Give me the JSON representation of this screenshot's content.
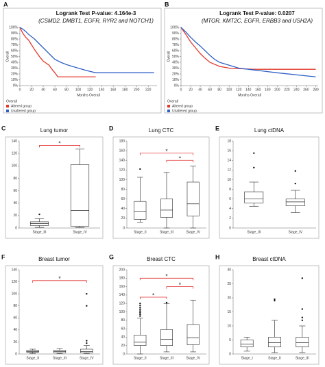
{
  "chart_data": [
    {
      "type": "line",
      "label": "A",
      "title": "Logrank Test P-value: 4.164e-3",
      "subtitle": "(CSMD2, DMBT1, EGFR, RYR2 and NOTCH1)",
      "xlabel": "Months Overall",
      "ylabel": "Overall",
      "legend_title": "Overall",
      "xlim": [
        0,
        235
      ],
      "xticks": [
        0,
        20,
        40,
        60,
        80,
        100,
        120,
        140,
        160,
        180,
        200,
        220
      ],
      "ylim": [
        0,
        100
      ],
      "yticks": [
        {
          "value": 0,
          "label": "0%"
        },
        {
          "value": 10,
          "label": "10%"
        },
        {
          "value": 20,
          "label": "20%"
        },
        {
          "value": 30,
          "label": "30%"
        },
        {
          "value": 40,
          "label": "40%"
        },
        {
          "value": 50,
          "label": "50%"
        },
        {
          "value": 60,
          "label": "60%"
        },
        {
          "value": 70,
          "label": "70%"
        },
        {
          "value": 80,
          "label": "80%"
        },
        {
          "value": 90,
          "label": "90%"
        },
        {
          "value": 100,
          "label": "100%"
        }
      ],
      "series": [
        {
          "name": "Altered group",
          "color": "#e2382a",
          "x": [
            0,
            5,
            10,
            15,
            20,
            25,
            30,
            35,
            40,
            50,
            55,
            60,
            65,
            130
          ],
          "values": [
            100,
            90,
            83,
            78,
            70,
            62,
            55,
            48,
            42,
            35,
            28,
            22,
            15,
            15
          ]
        },
        {
          "name": "Unaltered group",
          "color": "#2f5fc8",
          "x": [
            0,
            5,
            10,
            15,
            20,
            25,
            30,
            35,
            40,
            45,
            50,
            55,
            60,
            70,
            80,
            90,
            100,
            110,
            130,
            230
          ],
          "values": [
            100,
            97,
            93,
            88,
            84,
            80,
            75,
            70,
            65,
            60,
            55,
            50,
            45,
            40,
            36,
            33,
            30,
            27,
            22,
            22
          ]
        }
      ]
    },
    {
      "type": "line",
      "label": "B",
      "title": "Logrank Test P-value: 0.0207",
      "subtitle": "(MTOR, KMT2C, EGFR, ERBB3 and USH2A)",
      "xlabel": "Months Overall",
      "ylabel": "Overall",
      "legend_title": "Overall",
      "xlim": [
        0,
        285
      ],
      "xticks": [
        0,
        20,
        40,
        60,
        80,
        100,
        120,
        140,
        160,
        180,
        200,
        220,
        240,
        260,
        280
      ],
      "ylim": [
        0,
        100
      ],
      "yticks": [
        {
          "value": 0,
          "label": "0%"
        },
        {
          "value": 10,
          "label": "10%"
        },
        {
          "value": 20,
          "label": "20%"
        },
        {
          "value": 30,
          "label": "30%"
        },
        {
          "value": 40,
          "label": "40%"
        },
        {
          "value": 50,
          "label": "50%"
        },
        {
          "value": 60,
          "label": "60%"
        },
        {
          "value": 70,
          "label": "70%"
        },
        {
          "value": 80,
          "label": "80%"
        },
        {
          "value": 90,
          "label": "90%"
        },
        {
          "value": 100,
          "label": "100%"
        }
      ],
      "series": [
        {
          "name": "Altered group",
          "color": "#e2382a",
          "x": [
            0,
            10,
            20,
            30,
            40,
            50,
            60,
            80,
            100,
            150,
            220,
            280
          ],
          "values": [
            100,
            88,
            75,
            65,
            55,
            47,
            40,
            33,
            30,
            28,
            28,
            28
          ]
        },
        {
          "name": "Unaltered group",
          "color": "#2f5fc8",
          "x": [
            0,
            10,
            20,
            30,
            40,
            50,
            60,
            70,
            80,
            100,
            120,
            150,
            200,
            280
          ],
          "values": [
            100,
            92,
            83,
            75,
            68,
            60,
            52,
            45,
            40,
            35,
            30,
            27,
            22,
            15
          ]
        }
      ]
    },
    {
      "type": "box",
      "label": "C",
      "title": "Lung tumor",
      "categories": [
        "Stage_III",
        "Stage_IV"
      ],
      "ylim": [
        0,
        140
      ],
      "yticks": [
        0,
        20,
        40,
        60,
        80,
        100,
        120,
        140
      ],
      "bracket_color": "#e03030",
      "boxes": [
        {
          "min": 1,
          "q1": 4,
          "median": 7,
          "q3": 10,
          "max": 15,
          "outliers": [
            22
          ]
        },
        {
          "min": 1,
          "q1": 3,
          "median": 28,
          "q3": 102,
          "max": 127,
          "outliers": []
        }
      ],
      "annotations": [
        {
          "text": "*",
          "from": 0,
          "to": 1,
          "y": 133
        }
      ]
    },
    {
      "type": "box",
      "label": "D",
      "title": "Lung CTC",
      "categories": [
        "Stage_II",
        "Stage_III",
        "Stage_IV"
      ],
      "ylim": [
        0,
        180
      ],
      "yticks": [
        0,
        20,
        40,
        60,
        80,
        100,
        120,
        140,
        160,
        180
      ],
      "bracket_color": "#e03030",
      "boxes": [
        {
          "min": 12,
          "q1": 18,
          "median": 35,
          "q3": 55,
          "max": 105,
          "outliers": [
            122
          ]
        },
        {
          "min": 0,
          "q1": 22,
          "median": 37,
          "q3": 60,
          "max": 115,
          "outliers": []
        },
        {
          "min": 0,
          "q1": 25,
          "median": 50,
          "q3": 95,
          "max": 128,
          "outliers": []
        }
      ],
      "annotations": [
        {
          "text": "*",
          "from": 0,
          "to": 2,
          "y": 155
        },
        {
          "text": "*",
          "from": 1,
          "to": 2,
          "y": 140
        }
      ]
    },
    {
      "type": "box",
      "label": "E",
      "title": "Lung ctDNA",
      "categories": [
        "Stage_III",
        "Stage_IV"
      ],
      "ylim": [
        0,
        18
      ],
      "yticks": [
        0,
        2,
        4,
        6,
        8,
        10,
        12,
        14,
        16,
        18
      ],
      "bracket_color": "#e03030",
      "boxes": [
        {
          "min": 4.5,
          "q1": 5.2,
          "median": 6,
          "q3": 7.5,
          "max": 9.5,
          "outliers": [
            12.5,
            15.5
          ]
        },
        {
          "min": 3.2,
          "q1": 4.6,
          "median": 5.4,
          "q3": 6,
          "max": 7.8,
          "outliers": [
            9.2,
            11.8
          ]
        }
      ],
      "annotations": []
    },
    {
      "type": "box",
      "label": "F",
      "title": "Breast tumor",
      "categories": [
        "Stage_II",
        "Stage_III",
        "Stage_IV"
      ],
      "ylim": [
        0,
        140
      ],
      "yticks": [
        0,
        20,
        40,
        60,
        80,
        100,
        120,
        140
      ],
      "bracket_color": "#e03030",
      "boxes": [
        {
          "min": 1,
          "q1": 3,
          "median": 4,
          "q3": 6,
          "max": 8,
          "outliers": []
        },
        {
          "min": 1,
          "q1": 2,
          "median": 4,
          "q3": 6,
          "max": 9,
          "outliers": []
        },
        {
          "min": 1,
          "q1": 2,
          "median": 4,
          "q3": 8,
          "max": 14,
          "outliers": [
            18,
            22,
            80,
            100
          ]
        }
      ],
      "annotations": [
        {
          "text": "*",
          "from": 0,
          "to": 2,
          "y": 122
        }
      ]
    },
    {
      "type": "box",
      "label": "G",
      "title": "Breast CTC",
      "categories": [
        "Stage_II",
        "Stage_III",
        "Stage_IV"
      ],
      "ylim": [
        0,
        200
      ],
      "yticks": [
        0,
        20,
        40,
        60,
        80,
        100,
        120,
        140,
        160,
        180,
        200
      ],
      "bracket_color": "#e03030",
      "boxes": [
        {
          "min": 0,
          "q1": 20,
          "median": 28,
          "q3": 45,
          "max": 85,
          "outliers": [
            90,
            94,
            98,
            102,
            106,
            110,
            115,
            120
          ]
        },
        {
          "min": 5,
          "q1": 20,
          "median": 35,
          "q3": 58,
          "max": 120,
          "outliers": [
            122
          ]
        },
        {
          "min": 5,
          "q1": 22,
          "median": 38,
          "q3": 70,
          "max": 128,
          "outliers": []
        }
      ],
      "annotations": [
        {
          "text": "*",
          "from": 0,
          "to": 2,
          "y": 180
        },
        {
          "text": "*",
          "from": 1,
          "to": 2,
          "y": 160
        },
        {
          "text": "*",
          "from": 0,
          "to": 1,
          "y": 135
        }
      ]
    },
    {
      "type": "box",
      "label": "H",
      "title": "Breast ctDNA",
      "categories": [
        "Stage_I",
        "Stage_II",
        "Stage_III"
      ],
      "ylim": [
        0,
        30
      ],
      "yticks": [
        0,
        5,
        10,
        15,
        20,
        25,
        30
      ],
      "bracket_color": "#e03030",
      "boxes": [
        {
          "min": 1,
          "q1": 2.5,
          "median": 3.5,
          "q3": 5,
          "max": 6,
          "outliers": []
        },
        {
          "min": 0.5,
          "q1": 2.5,
          "median": 4,
          "q3": 6,
          "max": 12,
          "outliers": [
            19,
            19.5
          ]
        },
        {
          "min": 0.5,
          "q1": 2.5,
          "median": 4,
          "q3": 6,
          "max": 10,
          "outliers": [
            12,
            13,
            16,
            27
          ]
        }
      ],
      "annotations": []
    }
  ]
}
